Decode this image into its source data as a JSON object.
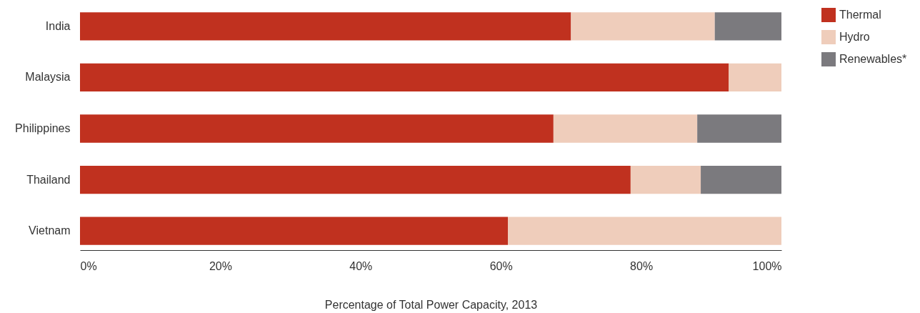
{
  "chart_data": {
    "type": "bar",
    "orientation": "horizontal",
    "stacked": true,
    "xlabel": "Percentage of Total Power Capacity, 2013",
    "categories": [
      "India",
      "Malaysia",
      "Philippines",
      "Thailand",
      "Vietnam"
    ],
    "series": [
      {
        "name": "Thermal",
        "color": "#c0311f",
        "values": [
          70,
          92.5,
          67.5,
          78.5,
          61
        ]
      },
      {
        "name": "Hydro",
        "color": "#efcdbb",
        "values": [
          20.5,
          7.5,
          20.5,
          10,
          39
        ]
      },
      {
        "name": "Renewables*",
        "color": "#7b7a7e",
        "values": [
          9.5,
          0,
          12,
          11.5,
          0
        ]
      }
    ],
    "xlim": [
      0,
      100
    ],
    "xticks": [
      {
        "value": 0,
        "label": "0%"
      },
      {
        "value": 20,
        "label": "20%"
      },
      {
        "value": 40,
        "label": "40%"
      },
      {
        "value": 60,
        "label": "60%"
      },
      {
        "value": 80,
        "label": "80%"
      },
      {
        "value": 100,
        "label": "100%"
      }
    ],
    "grid": false,
    "legend": "right"
  }
}
